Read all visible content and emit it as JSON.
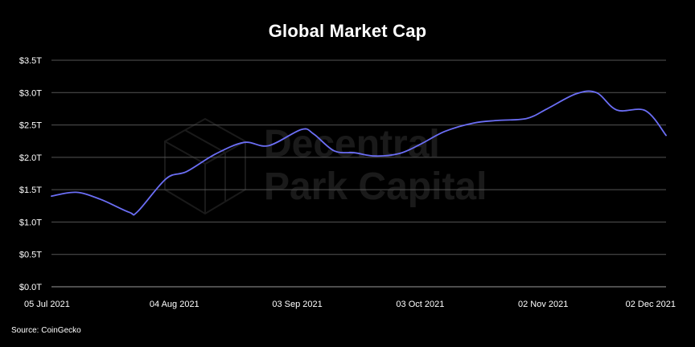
{
  "chart_data": {
    "type": "line",
    "title": "Global Market Cap",
    "source": "Source: CoinGecko",
    "watermark": [
      "Decentral",
      "Park Capital"
    ],
    "y_ticks": [
      "$0.0T",
      "$0.5T",
      "$1.0T",
      "$1.5T",
      "$2.0T",
      "$2.5T",
      "$3.0T",
      "$3.5T"
    ],
    "x_ticks": [
      "05 Jul 2021",
      "04 Aug 2021",
      "03 Sep 2021",
      "03 Oct 2021",
      "02 Nov 2021",
      "02 Dec 2021"
    ],
    "ylim": [
      0,
      3.5
    ],
    "xlim": [
      "2021-07-05",
      "2021-12-02"
    ],
    "grid": true,
    "line_color": "#6b6ef5",
    "series": [
      {
        "x": [
          "2021-07-05",
          "2021-07-11",
          "2021-07-17",
          "2021-07-24",
          "2021-07-26",
          "2021-08-02",
          "2021-08-07",
          "2021-08-14",
          "2021-08-21",
          "2021-08-27",
          "2021-09-04",
          "2021-09-07",
          "2021-09-12",
          "2021-09-17",
          "2021-09-22",
          "2021-09-28",
          "2021-10-03",
          "2021-10-09",
          "2021-10-16",
          "2021-10-22",
          "2021-10-29",
          "2021-11-03",
          "2021-11-10",
          "2021-11-15",
          "2021-11-20",
          "2021-11-27",
          "2021-12-02"
        ],
        "values": [
          1.4,
          1.46,
          1.35,
          1.15,
          1.16,
          1.67,
          1.78,
          2.05,
          2.23,
          2.18,
          2.43,
          2.36,
          2.1,
          2.07,
          2.02,
          2.06,
          2.2,
          2.4,
          2.53,
          2.57,
          2.6,
          2.75,
          2.98,
          3.0,
          2.73,
          2.72,
          2.34
        ]
      }
    ]
  }
}
